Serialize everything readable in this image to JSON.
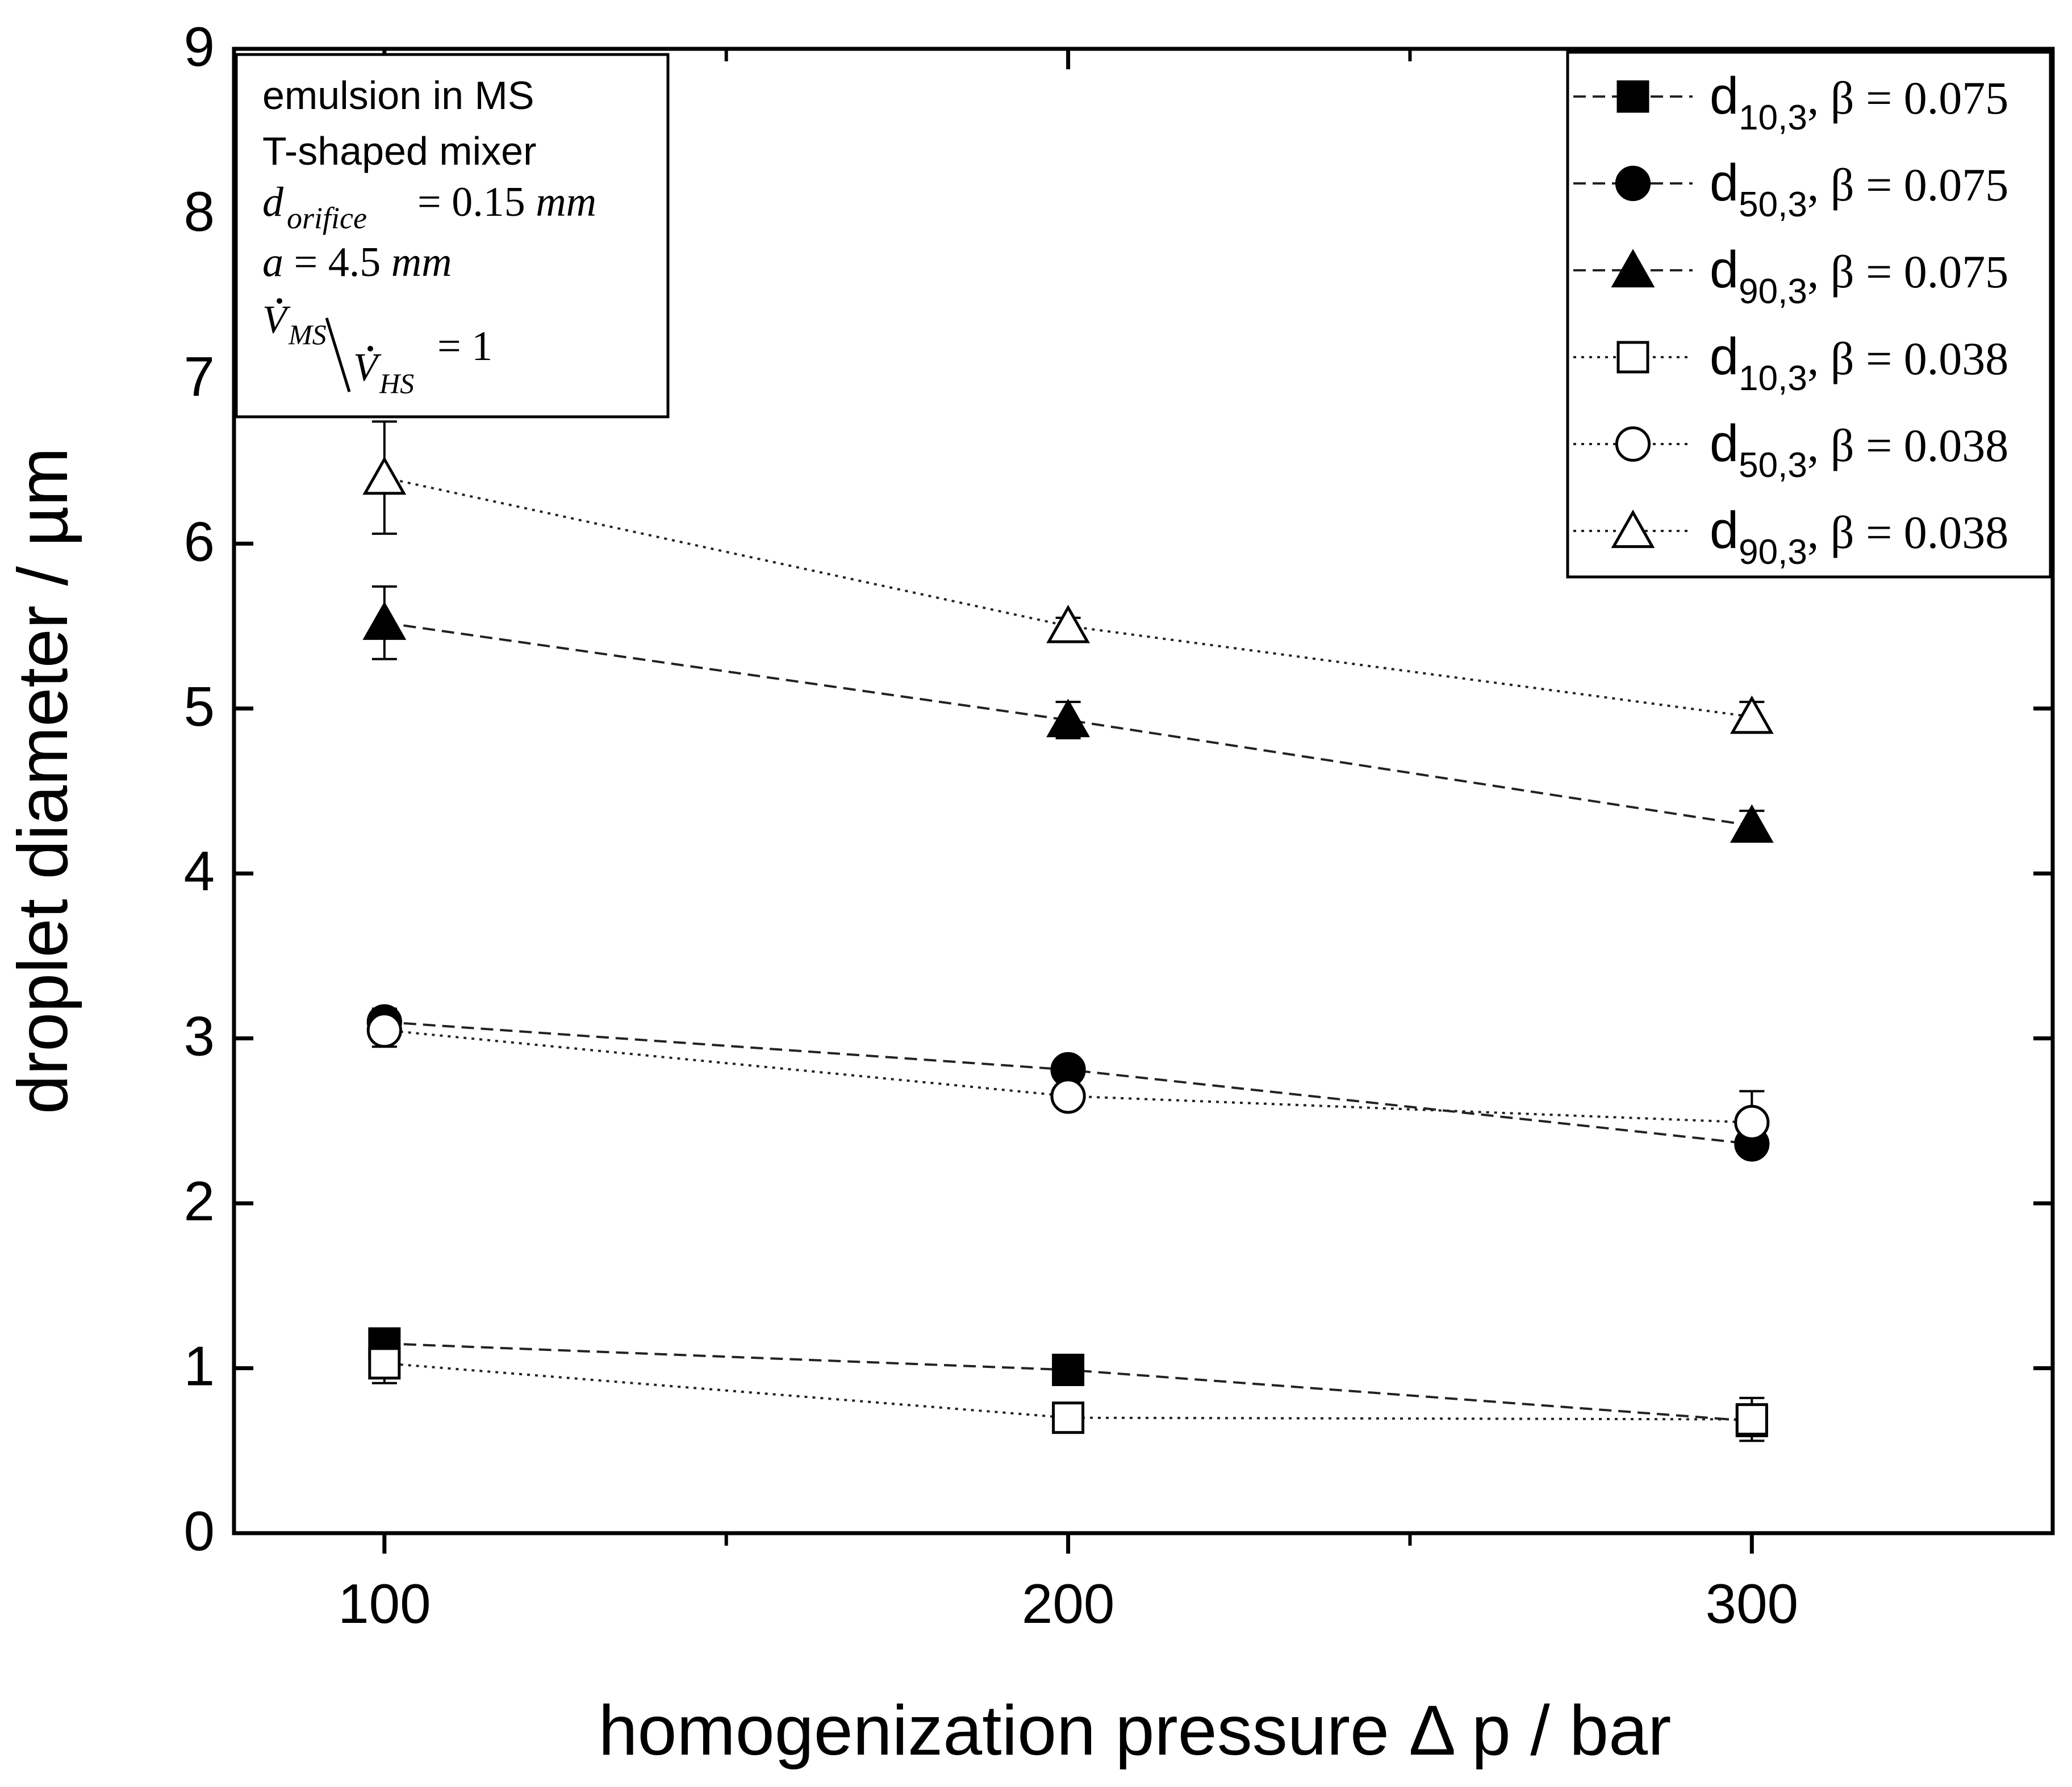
{
  "chart_data": {
    "type": "line",
    "xlabel": "homogenization pressure Δ p / bar",
    "ylabel": "droplet diameter / µm",
    "xlim": [
      78,
      344
    ],
    "ylim": [
      0,
      9
    ],
    "xticks": [
      100,
      200,
      300
    ],
    "xminor": [
      150,
      250
    ],
    "yticks": [
      0,
      1,
      2,
      3,
      4,
      5,
      6,
      7,
      8,
      9
    ],
    "grid": false,
    "legend_position": "top-right",
    "annotation": {
      "line1": "emulsion in MS",
      "line2": "T-shaped mixer",
      "line3": "d_orifice = 0.15 mm",
      "line4": "a = 4.5 mm",
      "line5": "V̇_MS / V̇_HS = 1"
    },
    "series": [
      {
        "name": "d10,3, β = 0.075",
        "label_main": "d",
        "label_sub": "10,3",
        "label_rest": ", β = 0.075",
        "marker": "square",
        "filled": true,
        "dash": "dashed",
        "x": [
          100,
          200,
          300
        ],
        "y": [
          1.15,
          0.99,
          0.68
        ],
        "err": [
          0.04,
          0.03,
          0.04
        ]
      },
      {
        "name": "d50,3, β = 0.075",
        "label_main": "d",
        "label_sub": "50,3",
        "label_rest": ", β = 0.075",
        "marker": "circle",
        "filled": true,
        "dash": "dashed",
        "x": [
          100,
          200,
          300
        ],
        "y": [
          3.1,
          2.81,
          2.36
        ],
        "err": [
          0.08,
          0.04,
          0.04
        ]
      },
      {
        "name": "d90,3, β = 0.075",
        "label_main": "d",
        "label_sub": "90,3",
        "label_rest": ", β = 0.075",
        "marker": "triangle",
        "filled": true,
        "dash": "dashed",
        "x": [
          100,
          200,
          300
        ],
        "y": [
          5.52,
          4.93,
          4.29
        ],
        "err": [
          0.22,
          0.11,
          0.09
        ]
      },
      {
        "name": "d10,3, β = 0.038",
        "label_main": "d",
        "label_sub": "10,3",
        "label_rest": ", β = 0.038",
        "marker": "square",
        "filled": false,
        "dash": "dotted",
        "x": [
          100,
          200,
          300
        ],
        "y": [
          1.03,
          0.7,
          0.69
        ],
        "err": [
          0.12,
          0.06,
          0.13
        ]
      },
      {
        "name": "d50,3, β = 0.038",
        "label_main": "d",
        "label_sub": "50,3",
        "label_rest": ", β = 0.038",
        "marker": "circle",
        "filled": false,
        "dash": "dotted",
        "x": [
          100,
          200,
          300
        ],
        "y": [
          3.05,
          2.65,
          2.49
        ],
        "err": [
          0.1,
          0.06,
          0.19
        ]
      },
      {
        "name": "d90,3, β = 0.038",
        "label_main": "d",
        "label_sub": "90,3",
        "label_rest": ", β = 0.038",
        "marker": "triangle",
        "filled": false,
        "dash": "dotted",
        "x": [
          100,
          200,
          300
        ],
        "y": [
          6.4,
          5.5,
          4.95
        ],
        "err": [
          0.34,
          0.05,
          0.09
        ]
      }
    ]
  }
}
